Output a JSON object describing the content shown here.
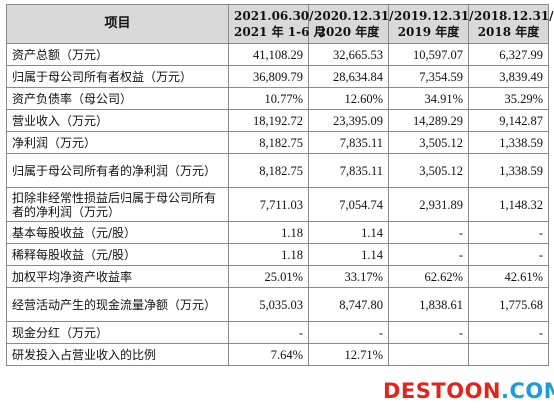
{
  "table": {
    "header": {
      "item": "项目",
      "columns": [
        [
          "2021.06.30/",
          "2021 年 1-6 月"
        ],
        [
          "2020.12.31/",
          "2020 年度"
        ],
        [
          "2019.12.31/",
          "2019 年度"
        ],
        [
          "2018.12.31/",
          "2018 年度"
        ]
      ]
    },
    "rows": [
      {
        "label": "资产总额（万元）",
        "values": [
          "41,108.29",
          "32,665.53",
          "10,597.07",
          "6,327.99"
        ]
      },
      {
        "label": "归属于母公司所有者权益（万元）",
        "values": [
          "36,809.79",
          "28,634.84",
          "7,354.59",
          "3,839.49"
        ]
      },
      {
        "label": "资产负债率（母公司）",
        "values": [
          "10.77%",
          "12.60%",
          "34.91%",
          "35.29%"
        ]
      },
      {
        "label": "营业收入（万元）",
        "values": [
          "18,192.72",
          "23,395.09",
          "14,289.29",
          "9,142.87"
        ]
      },
      {
        "label": "净利润（万元）",
        "values": [
          "8,182.75",
          "7,835.11",
          "3,505.12",
          "1,338.59"
        ]
      },
      {
        "label": "归属于母公司所有者的净利润（万元）",
        "values": [
          "8,182.75",
          "7,835.11",
          "3,505.12",
          "1,338.59"
        ]
      },
      {
        "label": "扣除非经常性损益后归属于母公司所有者的净利润（万元）",
        "values": [
          "7,711.03",
          "7,054.74",
          "2,931.89",
          "1,148.32"
        ]
      },
      {
        "label": "基本每股收益（元/股）",
        "values": [
          "1.18",
          "1.14",
          "-",
          "-"
        ]
      },
      {
        "label": "稀释每股收益（元/股）",
        "values": [
          "1.18",
          "1.14",
          "-",
          "-"
        ]
      },
      {
        "label": "加权平均净资产收益率",
        "values": [
          "25.01%",
          "33.17%",
          "62.62%",
          "42.61%"
        ]
      },
      {
        "label": "经营活动产生的现金流量净额（万元）",
        "values": [
          "5,035.03",
          "8,747.80",
          "1,838.61",
          "1,775.68"
        ]
      },
      {
        "label": "现金分红（万元）",
        "values": [
          "-",
          "-",
          "-",
          "-"
        ]
      },
      {
        "label": "研发投入占营业收入的比例",
        "values": [
          "7.64%",
          "12.71%",
          "",
          ""
        ]
      }
    ]
  },
  "watermark": {
    "part_a": "DESTOON",
    "part_b": ".COM"
  }
}
